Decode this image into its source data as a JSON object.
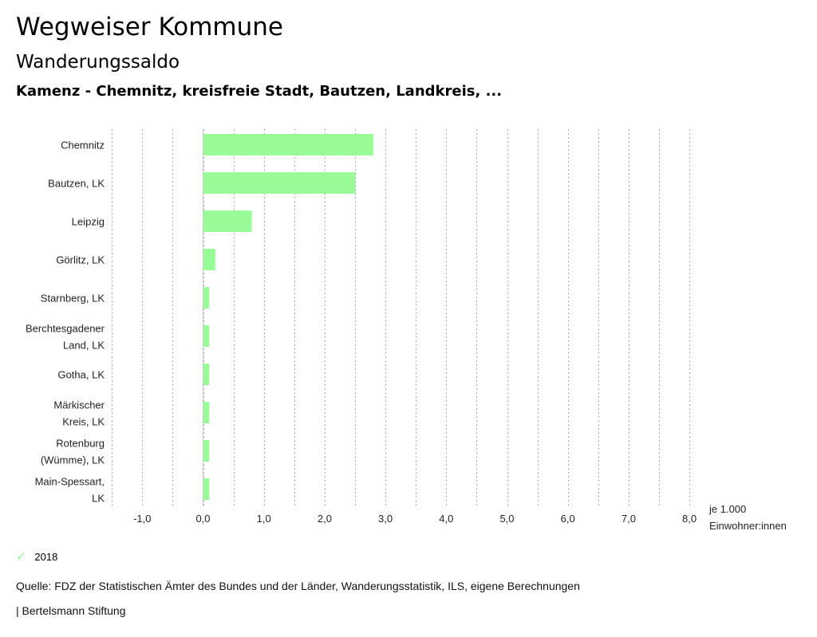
{
  "header": {
    "title": "Wegweiser Kommune",
    "subtitle": "Wanderungssaldo",
    "region": "Kamenz - Chemnitz, kreisfreie Stadt, Bautzen, Landkreis, ..."
  },
  "chart_data": {
    "type": "bar",
    "orientation": "horizontal",
    "categories": [
      [
        "Chemnitz"
      ],
      [
        "Bautzen, LK"
      ],
      [
        "Leipzig"
      ],
      [
        "Görlitz, LK"
      ],
      [
        "Starnberg, LK"
      ],
      [
        "Berchtesgadener",
        "Land, LK"
      ],
      [
        "Gotha, LK"
      ],
      [
        "Märkischer",
        "Kreis, LK"
      ],
      [
        "Rotenburg",
        "(Wümme), LK"
      ],
      [
        "Main-Spessart,",
        "LK"
      ]
    ],
    "series": [
      {
        "name": "2018",
        "color": "#98fb98",
        "values": [
          2.8,
          2.5,
          0.8,
          0.2,
          0.1,
          0.1,
          0.1,
          0.1,
          0.1,
          0.1
        ]
      }
    ],
    "xlim": [
      -1.5,
      8.0
    ],
    "ticks": [
      -1.0,
      0.0,
      1.0,
      2.0,
      3.0,
      4.0,
      5.0,
      6.0,
      7.0,
      8.0
    ],
    "tick_labels": [
      "-1,0",
      "0,0",
      "1,0",
      "2,0",
      "3,0",
      "4,0",
      "5,0",
      "6,0",
      "7,0",
      "8,0"
    ],
    "unit_label": [
      "je 1.000",
      "Einwohner:innen"
    ],
    "grid": true
  },
  "legend": {
    "label": "2018",
    "icon": "check-icon"
  },
  "source": "Quelle: FDZ der Statistischen Ämter des Bundes und der Länder, Wanderungsstatistik, ILS, eigene Berechnungen",
  "footer": "| Bertelsmann Stiftung"
}
